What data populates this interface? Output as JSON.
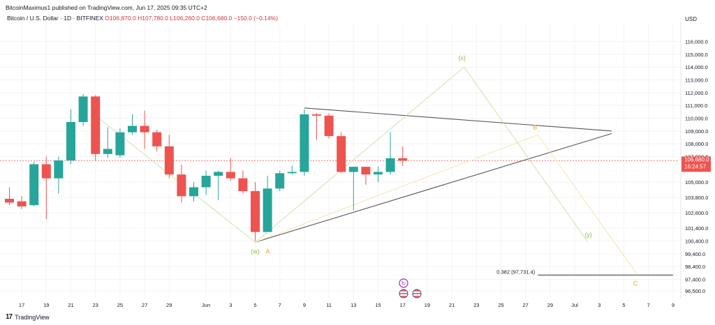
{
  "header": {
    "published": "BitcoinMaximus1 published on TradingView.com, Jun 17, 2025 09:35 UTC+2",
    "symbol": "Bitcoin / U.S. Dollar · 1D · BITFINEX",
    "ohlc": "O106,870.0  H107,780.0  L106,260.0  C106,680.0  −150.0 (−0.14%)",
    "currency": "USD"
  },
  "footer": {
    "brand": "TradingView"
  },
  "colors": {
    "up": "#26a69a",
    "down": "#ef5350",
    "trend": "#555555",
    "wave_green": "#8bc34a",
    "wave_orange": "#f5a623",
    "grid": "#f3f3f3"
  },
  "chart_data": {
    "type": "candlestick",
    "title": "Bitcoin / U.S. Dollar · 1D · BITFINEX",
    "ylabel": "USD",
    "ylim": [
      95900,
      117500
    ],
    "x_ticks": [
      "17",
      "19",
      "21",
      "23",
      "25",
      "27",
      "29",
      "Jun",
      "3",
      "5",
      "7",
      "9",
      "11",
      "13",
      "15",
      "17",
      "19",
      "21",
      "23",
      "25",
      "27",
      "29",
      "Jul",
      "3",
      "5",
      "7",
      "9"
    ],
    "y_ticks": [
      "116,000.0",
      "115,000.0",
      "114,000.0",
      "113,000.0",
      "112,000.0",
      "111,000.0",
      "110,000.0",
      "109,000.0",
      "108,000.0",
      "107,000.0",
      "105,000.0",
      "103,800.0",
      "102,600.0",
      "101,400.0",
      "100,400.0",
      "99,400.0",
      "98,400.0",
      "97,400.0",
      "96,500.0"
    ],
    "candles": [
      {
        "date": "May 16",
        "o": 103700,
        "h": 104600,
        "l": 103200,
        "c": 103400
      },
      {
        "date": "May 17",
        "o": 103500,
        "h": 103900,
        "l": 102900,
        "c": 103100
      },
      {
        "date": "May 18",
        "o": 103200,
        "h": 106600,
        "l": 103100,
        "c": 106400
      },
      {
        "date": "May 19",
        "o": 106400,
        "h": 107000,
        "l": 102100,
        "c": 105300
      },
      {
        "date": "May 20",
        "o": 105300,
        "h": 107000,
        "l": 104100,
        "c": 106700
      },
      {
        "date": "May 21",
        "o": 106700,
        "h": 110700,
        "l": 106400,
        "c": 109700
      },
      {
        "date": "May 22",
        "o": 109700,
        "h": 111900,
        "l": 109400,
        "c": 111700
      },
      {
        "date": "May 23",
        "o": 111700,
        "h": 111800,
        "l": 106700,
        "c": 107200
      },
      {
        "date": "May 24",
        "o": 107200,
        "h": 109300,
        "l": 106900,
        "c": 107600
      },
      {
        "date": "May 25",
        "o": 107100,
        "h": 109200,
        "l": 106900,
        "c": 108900
      },
      {
        "date": "May 26",
        "o": 108900,
        "h": 110300,
        "l": 108700,
        "c": 109400
      },
      {
        "date": "May 27",
        "o": 109400,
        "h": 110600,
        "l": 107600,
        "c": 108900
      },
      {
        "date": "May 28",
        "o": 108900,
        "h": 109100,
        "l": 107400,
        "c": 107800
      },
      {
        "date": "May 29",
        "o": 107800,
        "h": 108700,
        "l": 105300,
        "c": 105600
      },
      {
        "date": "May 30",
        "o": 105600,
        "h": 106400,
        "l": 103400,
        "c": 103900
      },
      {
        "date": "May 31",
        "o": 103900,
        "h": 105000,
        "l": 103500,
        "c": 104600
      },
      {
        "date": "Jun 1",
        "o": 104600,
        "h": 105900,
        "l": 104000,
        "c": 105500
      },
      {
        "date": "Jun 2",
        "o": 105500,
        "h": 105900,
        "l": 103600,
        "c": 105800
      },
      {
        "date": "Jun 3",
        "o": 105800,
        "h": 106900,
        "l": 105100,
        "c": 105300
      },
      {
        "date": "Jun 4",
        "o": 105300,
        "h": 105900,
        "l": 104100,
        "c": 104300
      },
      {
        "date": "Jun 5",
        "o": 104300,
        "h": 105000,
        "l": 100400,
        "c": 101100
      },
      {
        "date": "Jun 6",
        "o": 101100,
        "h": 105500,
        "l": 101100,
        "c": 104500
      },
      {
        "date": "Jun 7",
        "o": 104500,
        "h": 105900,
        "l": 104300,
        "c": 105700
      },
      {
        "date": "Jun 8",
        "o": 105700,
        "h": 106300,
        "l": 105600,
        "c": 105800
      },
      {
        "date": "Jun 9",
        "o": 105800,
        "h": 110700,
        "l": 105500,
        "c": 110300
      },
      {
        "date": "Jun 10",
        "o": 110300,
        "h": 110400,
        "l": 108300,
        "c": 110200
      },
      {
        "date": "Jun 11",
        "o": 110200,
        "h": 110400,
        "l": 108400,
        "c": 108600
      },
      {
        "date": "Jun 12",
        "o": 108600,
        "h": 108900,
        "l": 105700,
        "c": 105800
      },
      {
        "date": "Jun 13",
        "o": 105800,
        "h": 106200,
        "l": 102800,
        "c": 106200
      },
      {
        "date": "Jun 14",
        "o": 106200,
        "h": 106200,
        "l": 104800,
        "c": 105600
      },
      {
        "date": "Jun 15",
        "o": 105600,
        "h": 106200,
        "l": 105000,
        "c": 105800
      },
      {
        "date": "Jun 16",
        "o": 105800,
        "h": 108900,
        "l": 105600,
        "c": 106870
      },
      {
        "date": "Jun 17",
        "o": 106870,
        "h": 107780,
        "l": 106260,
        "c": 106680
      }
    ],
    "last_price_label": "106,680.0",
    "countdown_label": "16:24:57",
    "drawings": {
      "triangle_upper": [
        {
          "date": "Jun 9",
          "price": 110800
        },
        {
          "date": "Jul 4",
          "price": 109000
        }
      ],
      "triangle_lower": [
        {
          "date": "Jun 5",
          "price": 100300
        },
        {
          "date": "Jul 4",
          "price": 108800
        }
      ],
      "wave_wxy": [
        {
          "date": "May 23",
          "price": 110200,
          "label": ""
        },
        {
          "date": "Jun 5",
          "price": 100300,
          "label": "(w)"
        },
        {
          "date": "Jun 22",
          "price": 114000,
          "label": "(x)"
        },
        {
          "date": "Jul 2",
          "price": 100400,
          "label": "(y)"
        }
      ],
      "wave_abc": [
        {
          "date": "Jun 5",
          "price": 100300,
          "label": "A"
        },
        {
          "date": "Jun 28",
          "price": 108700,
          "label": "B"
        },
        {
          "date": "Jul 6",
          "price": 97900,
          "label": "C"
        }
      ],
      "fib_line": {
        "label": "0.382 (97,731.4)",
        "price": 97731.4,
        "from_date": "Jun 28",
        "to_date": "Jul 9"
      }
    }
  }
}
